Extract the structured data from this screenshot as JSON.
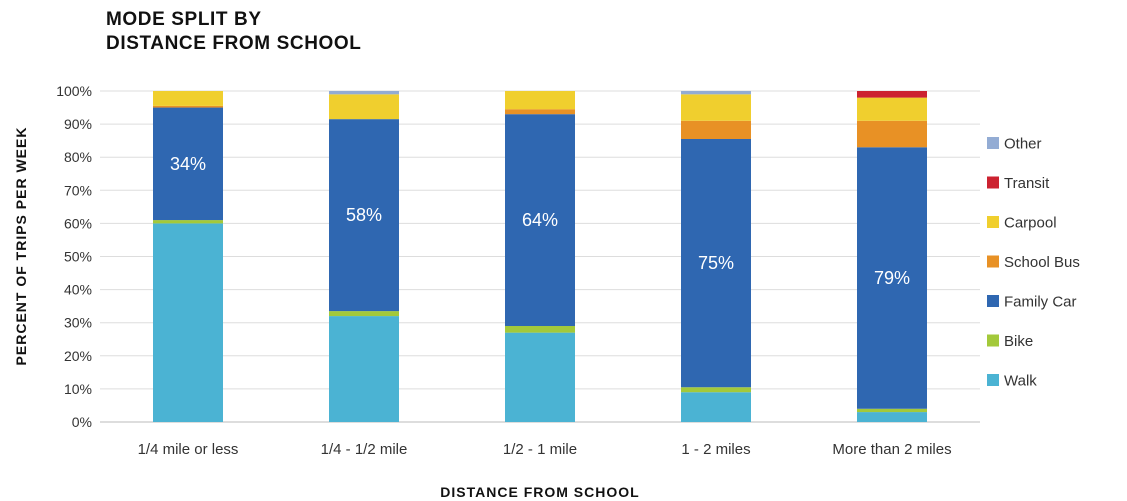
{
  "chart_data": {
    "type": "bar",
    "stacked": true,
    "title_lines": [
      "MODE SPLIT BY",
      "DISTANCE FROM SCHOOL"
    ],
    "xlabel": "DISTANCE FROM SCHOOL",
    "ylabel": "PERCENT OF TRIPS PER WEEK",
    "ylim": [
      0,
      100
    ],
    "yticks": [
      "0%",
      "10%",
      "20%",
      "30%",
      "40%",
      "50%",
      "60%",
      "70%",
      "80%",
      "90%",
      "100%"
    ],
    "grid": true,
    "legend_position": "right",
    "categories": [
      "1/4 mile or less",
      "1/4 - 1/2 mile",
      "1/2 - 1 mile",
      "1 - 2 miles",
      "More than 2 miles"
    ],
    "series": [
      {
        "name": "Walk",
        "color": "#4bb3d3",
        "values": [
          60,
          32,
          27,
          9,
          3
        ]
      },
      {
        "name": "Bike",
        "color": "#a3c93a",
        "values": [
          1,
          1.5,
          2,
          1.5,
          1
        ]
      },
      {
        "name": "Family Car",
        "color": "#2f67b1",
        "values": [
          34,
          58,
          64,
          75,
          79
        ]
      },
      {
        "name": "School Bus",
        "color": "#e89125",
        "values": [
          0.5,
          0,
          1.5,
          5.5,
          8
        ]
      },
      {
        "name": "Carpool",
        "color": "#f0cf2e",
        "values": [
          4.5,
          7.5,
          5.5,
          8,
          7
        ]
      },
      {
        "name": "Transit",
        "color": "#cc2230",
        "values": [
          0,
          0,
          0,
          0,
          2
        ]
      },
      {
        "name": "Other",
        "color": "#93acd4",
        "values": [
          0,
          1,
          0,
          1,
          0
        ]
      }
    ],
    "data_labels": [
      "34%",
      "58%",
      "64%",
      "75%",
      "79%"
    ],
    "data_label_series": "Family Car",
    "legend_order": [
      "Other",
      "Transit",
      "Carpool",
      "School Bus",
      "Family Car",
      "Bike",
      "Walk"
    ]
  }
}
